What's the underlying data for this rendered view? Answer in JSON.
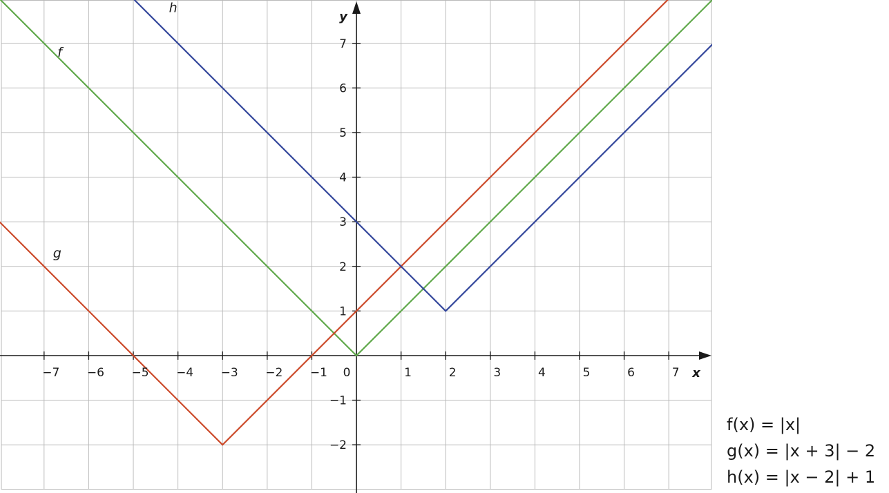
{
  "chart_data": {
    "type": "line",
    "title": "",
    "xlabel": "x",
    "ylabel": "y",
    "xlim": [
      -8,
      8
    ],
    "ylim": [
      -3,
      8
    ],
    "grid": true,
    "x_ticks": [
      "−7",
      "−6",
      "−5",
      "−4",
      "−3",
      "−2",
      "−1",
      "0",
      "1",
      "2",
      "3",
      "4",
      "5",
      "6",
      "7"
    ],
    "y_ticks": [
      "−2",
      "−1",
      "1",
      "2",
      "3",
      "4",
      "5",
      "6",
      "7"
    ],
    "series": [
      {
        "name": "f",
        "color": "#5fa84a",
        "points": [
          [
            -8,
            8
          ],
          [
            0,
            0
          ],
          [
            8,
            8
          ]
        ]
      },
      {
        "name": "g",
        "color": "#cc4a2a",
        "points": [
          [
            -8,
            3
          ],
          [
            -3,
            -2
          ],
          [
            7,
            8
          ]
        ]
      },
      {
        "name": "h",
        "color": "#34479c",
        "points": [
          [
            -5,
            8
          ],
          [
            2,
            1
          ],
          [
            8,
            7
          ]
        ]
      }
    ],
    "legend": {
      "f": "f(x) = |x|",
      "g": "g(x) = |x + 3| − 2",
      "h": "h(x) = |x − 2| + 1"
    }
  }
}
